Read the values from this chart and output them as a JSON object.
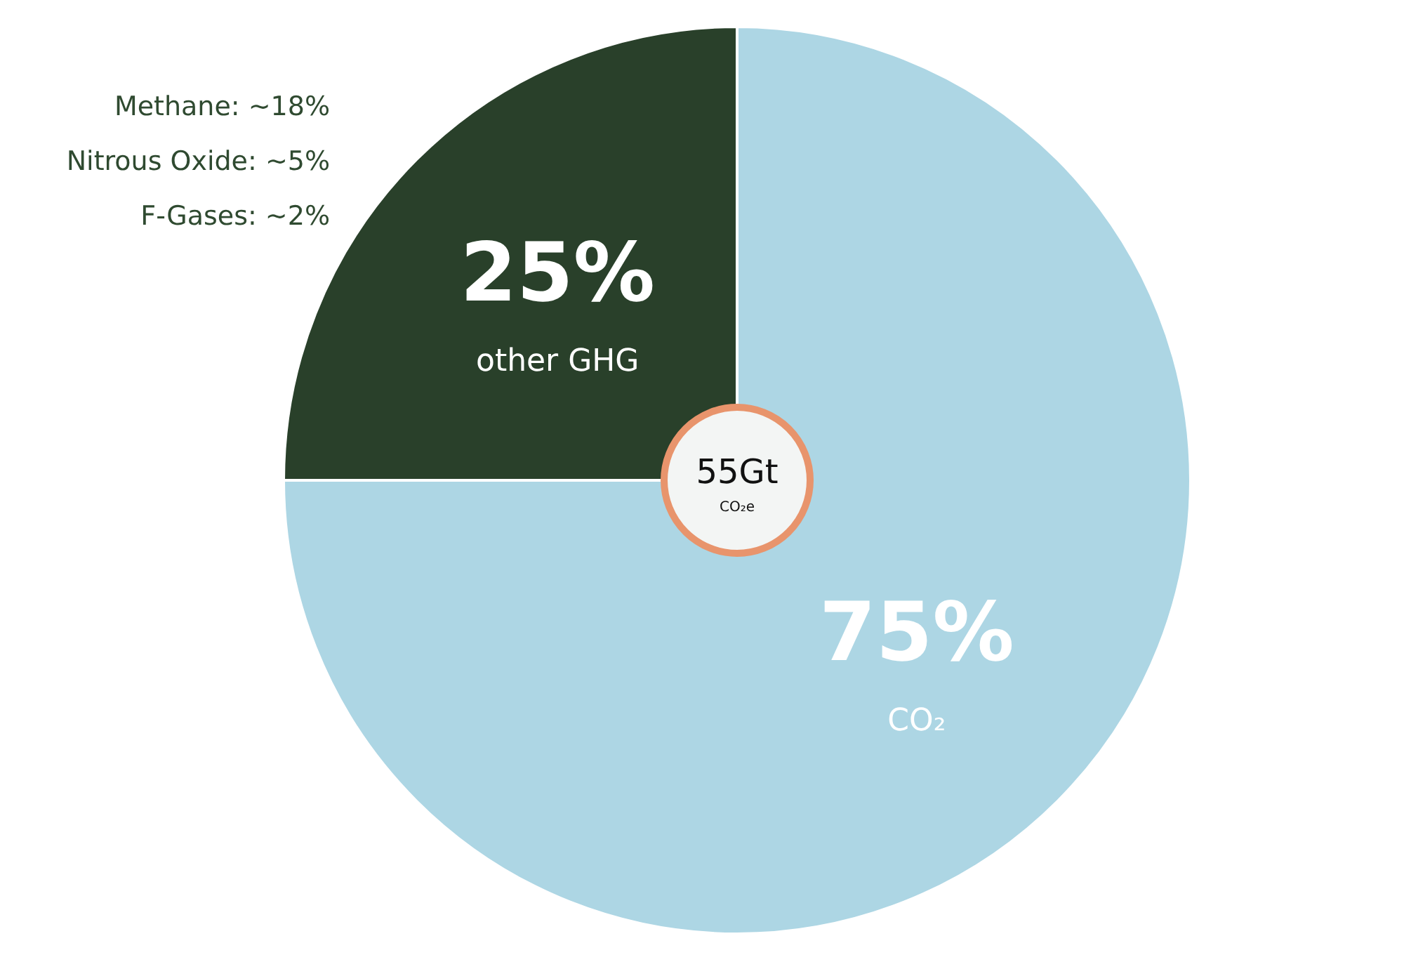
{
  "chart_data": {
    "type": "pie",
    "categories": [
      "CO₂",
      "other GHG"
    ],
    "values": [
      75,
      25
    ],
    "colors": [
      "#add6e4",
      "#29402a"
    ],
    "value_labels": [
      "75%",
      "25%"
    ],
    "annotations": [
      "Methane: ~18%",
      "Nitrous Oxide: ~5%",
      "F-Gases: ~2%",
      "55Gt CO₂e"
    ]
  }
}
